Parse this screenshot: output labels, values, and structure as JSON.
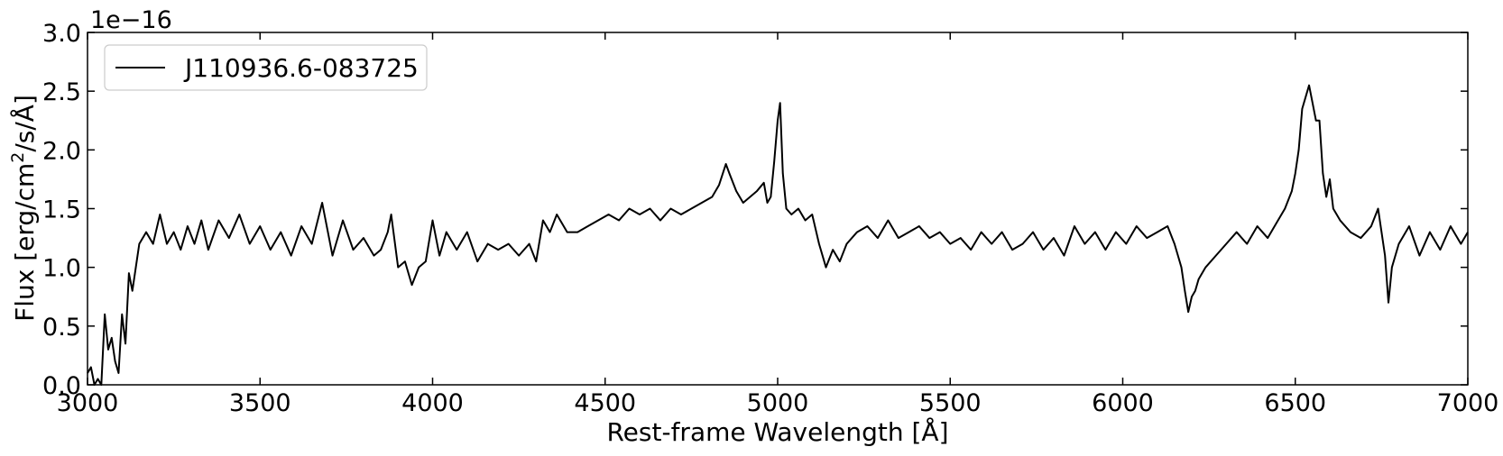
{
  "chart_data": {
    "type": "line",
    "title": "",
    "xlabel": "Rest-frame Wavelength [Å]",
    "ylabel_parts": {
      "pre": "Flux [erg/cm",
      "sup": "2",
      "post": "/s/Å]"
    },
    "offset_text": "1e−16",
    "xlim": [
      3000,
      7000
    ],
    "ylim": [
      0.0,
      3.0
    ],
    "y_scale_factor": 1e-16,
    "xticks": [
      3000,
      3500,
      4000,
      4500,
      5000,
      5500,
      6000,
      6500,
      7000
    ],
    "xtick_labels": [
      "3000",
      "3500",
      "4000",
      "4500",
      "5000",
      "5500",
      "6000",
      "6500",
      "7000"
    ],
    "yticks": [
      0.0,
      0.5,
      1.0,
      1.5,
      2.0,
      2.5,
      3.0
    ],
    "ytick_labels": [
      "0.0",
      "0.5",
      "1.0",
      "1.5",
      "2.0",
      "2.5",
      "3.0"
    ],
    "grid": false,
    "legend": {
      "placement": "top-left",
      "entries": [
        "J110936.6-083725"
      ]
    },
    "line_color": "#000000",
    "series": [
      {
        "name": "J110936.6-083725",
        "x": [
          3000,
          3010,
          3020,
          3030,
          3040,
          3050,
          3060,
          3070,
          3080,
          3090,
          3100,
          3110,
          3120,
          3130,
          3140,
          3150,
          3170,
          3190,
          3210,
          3230,
          3250,
          3270,
          3290,
          3310,
          3330,
          3350,
          3380,
          3410,
          3440,
          3470,
          3500,
          3530,
          3560,
          3590,
          3620,
          3650,
          3680,
          3710,
          3740,
          3770,
          3800,
          3830,
          3850,
          3870,
          3880,
          3900,
          3920,
          3940,
          3960,
          3980,
          4000,
          4020,
          4040,
          4070,
          4100,
          4130,
          4160,
          4190,
          4220,
          4250,
          4280,
          4300,
          4320,
          4340,
          4360,
          4390,
          4420,
          4450,
          4480,
          4510,
          4540,
          4570,
          4600,
          4630,
          4660,
          4690,
          4720,
          4750,
          4780,
          4810,
          4830,
          4850,
          4860,
          4880,
          4900,
          4920,
          4940,
          4960,
          4970,
          4980,
          4990,
          5000,
          5007,
          5015,
          5025,
          5040,
          5060,
          5080,
          5100,
          5120,
          5140,
          5160,
          5180,
          5200,
          5230,
          5260,
          5290,
          5320,
          5350,
          5380,
          5410,
          5440,
          5470,
          5500,
          5530,
          5560,
          5590,
          5620,
          5650,
          5680,
          5710,
          5740,
          5770,
          5800,
          5830,
          5860,
          5890,
          5920,
          5950,
          5980,
          6010,
          6040,
          6070,
          6100,
          6130,
          6150,
          6160,
          6170,
          6180,
          6190,
          6200,
          6210,
          6220,
          6240,
          6270,
          6300,
          6330,
          6360,
          6390,
          6420,
          6450,
          6470,
          6490,
          6500,
          6510,
          6520,
          6530,
          6540,
          6550,
          6560,
          6570,
          6580,
          6590,
          6600,
          6610,
          6630,
          6660,
          6690,
          6720,
          6740,
          6760,
          6770,
          6780,
          6800,
          6830,
          6860,
          6890,
          6920,
          6950,
          6980,
          7000
        ],
        "values": [
          0.1,
          0.15,
          0.0,
          0.05,
          0.0,
          0.6,
          0.3,
          0.4,
          0.2,
          0.1,
          0.6,
          0.35,
          0.95,
          0.8,
          1.0,
          1.2,
          1.3,
          1.2,
          1.45,
          1.2,
          1.3,
          1.15,
          1.35,
          1.2,
          1.4,
          1.15,
          1.4,
          1.25,
          1.45,
          1.2,
          1.35,
          1.15,
          1.3,
          1.1,
          1.35,
          1.2,
          1.55,
          1.1,
          1.4,
          1.15,
          1.25,
          1.1,
          1.15,
          1.3,
          1.45,
          1.0,
          1.05,
          0.85,
          1.0,
          1.05,
          1.4,
          1.1,
          1.3,
          1.15,
          1.3,
          1.05,
          1.2,
          1.15,
          1.2,
          1.1,
          1.2,
          1.05,
          1.4,
          1.3,
          1.45,
          1.3,
          1.3,
          1.35,
          1.4,
          1.45,
          1.4,
          1.5,
          1.45,
          1.5,
          1.4,
          1.5,
          1.45,
          1.5,
          1.55,
          1.6,
          1.7,
          1.88,
          1.8,
          1.65,
          1.55,
          1.6,
          1.65,
          1.72,
          1.55,
          1.6,
          1.9,
          2.25,
          2.4,
          1.8,
          1.5,
          1.45,
          1.5,
          1.4,
          1.45,
          1.2,
          1.0,
          1.15,
          1.05,
          1.2,
          1.3,
          1.35,
          1.25,
          1.4,
          1.25,
          1.3,
          1.35,
          1.25,
          1.3,
          1.2,
          1.25,
          1.15,
          1.3,
          1.2,
          1.3,
          1.15,
          1.2,
          1.3,
          1.15,
          1.25,
          1.1,
          1.35,
          1.2,
          1.3,
          1.15,
          1.3,
          1.2,
          1.35,
          1.25,
          1.3,
          1.35,
          1.2,
          1.1,
          1.0,
          0.8,
          0.62,
          0.75,
          0.8,
          0.9,
          1.0,
          1.1,
          1.2,
          1.3,
          1.2,
          1.35,
          1.25,
          1.4,
          1.5,
          1.65,
          1.8,
          2.0,
          2.35,
          2.45,
          2.55,
          2.4,
          2.25,
          2.25,
          1.8,
          1.6,
          1.75,
          1.5,
          1.4,
          1.3,
          1.25,
          1.35,
          1.5,
          1.1,
          0.7,
          1.0,
          1.2,
          1.35,
          1.1,
          1.3,
          1.15,
          1.35,
          1.2,
          1.3
        ]
      }
    ]
  }
}
